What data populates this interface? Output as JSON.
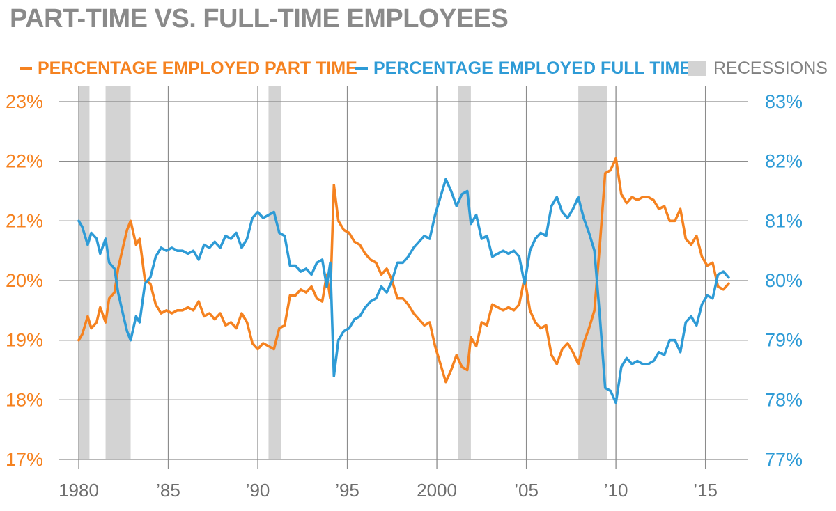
{
  "chart_data": {
    "type": "line",
    "title": "PART-TIME VS. FULL-TIME EMPLOYEES",
    "legend": {
      "part_time": "PERCENTAGE EMPLOYED PART TIME",
      "full_time": "PERCENTAGE EMPLOYED FULL TIME",
      "recessions": "RECESSIONS"
    },
    "colors": {
      "part_time": "#f58220",
      "full_time": "#2e9bd6",
      "recessions": "#d3d3d3",
      "grid": "#8c8c8c",
      "title": "#8a8a8a"
    },
    "x_range": [
      1980,
      2016.5
    ],
    "x_ticks": [
      {
        "value": 1980,
        "label": "1980"
      },
      {
        "value": 1985,
        "label": "’85"
      },
      {
        "value": 1990,
        "label": "’90"
      },
      {
        "value": 1995,
        "label": "’95"
      },
      {
        "value": 2000,
        "label": "2000"
      },
      {
        "value": 2005,
        "label": "’05"
      },
      {
        "value": 2010,
        "label": "’10"
      },
      {
        "value": 2015,
        "label": "’15"
      }
    ],
    "y_left": {
      "range": [
        17,
        23
      ],
      "ticks": [
        17,
        18,
        19,
        20,
        21,
        22,
        23
      ],
      "labels": [
        "17%",
        "18%",
        "19%",
        "20%",
        "21%",
        "22%",
        "23%"
      ]
    },
    "y_right": {
      "range": [
        77,
        83
      ],
      "ticks": [
        77,
        78,
        79,
        80,
        81,
        82,
        83
      ],
      "labels": [
        "77%",
        "78%",
        "79%",
        "80%",
        "81%",
        "82%",
        "83%"
      ]
    },
    "recessions": [
      [
        1980.0,
        1980.6
      ],
      [
        1981.5,
        1982.9
      ],
      [
        1990.6,
        1991.3
      ],
      [
        2001.2,
        2001.9
      ],
      [
        2007.9,
        2009.5
      ]
    ],
    "series": [
      {
        "name": "PERCENTAGE EMPLOYED PART TIME",
        "axis": "left",
        "x": [
          1980.0,
          1980.2,
          1980.5,
          1980.7,
          1981.0,
          1981.2,
          1981.5,
          1981.7,
          1982.0,
          1982.2,
          1982.5,
          1982.7,
          1982.9,
          1983.2,
          1983.4,
          1983.7,
          1984.0,
          1984.3,
          1984.6,
          1984.9,
          1985.2,
          1985.5,
          1985.8,
          1986.1,
          1986.4,
          1986.7,
          1987.0,
          1987.3,
          1987.6,
          1987.9,
          1988.2,
          1988.5,
          1988.8,
          1989.1,
          1989.4,
          1989.7,
          1990.0,
          1990.3,
          1990.6,
          1990.9,
          1991.2,
          1991.5,
          1991.8,
          1992.1,
          1992.4,
          1992.7,
          1993.0,
          1993.3,
          1993.6,
          1993.85,
          1994.05,
          1994.25,
          1994.5,
          1994.8,
          1995.1,
          1995.4,
          1995.7,
          1996.0,
          1996.3,
          1996.6,
          1996.9,
          1997.2,
          1997.5,
          1997.8,
          1998.1,
          1998.4,
          1998.7,
          1999.0,
          1999.3,
          1999.6,
          1999.9,
          2000.2,
          2000.5,
          2000.8,
          2001.1,
          2001.4,
          2001.7,
          2001.9,
          2002.2,
          2002.5,
          2002.8,
          2003.1,
          2003.4,
          2003.7,
          2004.0,
          2004.3,
          2004.6,
          2004.9,
          2005.2,
          2005.5,
          2005.8,
          2006.1,
          2006.4,
          2006.7,
          2007.0,
          2007.3,
          2007.6,
          2007.9,
          2008.2,
          2008.5,
          2008.8,
          2009.1,
          2009.4,
          2009.7,
          2010.0,
          2010.3,
          2010.6,
          2010.9,
          2011.2,
          2011.5,
          2011.8,
          2012.1,
          2012.4,
          2012.7,
          2013.0,
          2013.3,
          2013.6,
          2013.9,
          2014.2,
          2014.5,
          2014.8,
          2015.1,
          2015.4,
          2015.7,
          2016.0,
          2016.3
        ],
        "values": [
          19.0,
          19.1,
          19.4,
          19.2,
          19.3,
          19.55,
          19.3,
          19.7,
          19.8,
          20.2,
          20.6,
          20.85,
          21.0,
          20.6,
          20.7,
          20.0,
          19.95,
          19.6,
          19.45,
          19.5,
          19.45,
          19.5,
          19.5,
          19.55,
          19.5,
          19.65,
          19.4,
          19.45,
          19.35,
          19.45,
          19.25,
          19.3,
          19.2,
          19.45,
          19.3,
          18.95,
          18.85,
          18.95,
          18.9,
          18.85,
          19.2,
          19.25,
          19.75,
          19.75,
          19.85,
          19.8,
          19.9,
          19.7,
          19.65,
          20.1,
          19.7,
          21.6,
          21.0,
          20.85,
          20.8,
          20.65,
          20.6,
          20.45,
          20.35,
          20.3,
          20.1,
          20.2,
          20.0,
          19.7,
          19.7,
          19.6,
          19.45,
          19.35,
          19.25,
          19.3,
          18.9,
          18.6,
          18.3,
          18.5,
          18.75,
          18.55,
          18.5,
          19.05,
          18.9,
          19.3,
          19.25,
          19.6,
          19.55,
          19.5,
          19.55,
          19.5,
          19.6,
          20.05,
          19.5,
          19.3,
          19.2,
          19.25,
          18.75,
          18.6,
          18.85,
          18.95,
          18.8,
          18.6,
          18.95,
          19.2,
          19.5,
          20.6,
          21.8,
          21.85,
          22.05,
          21.45,
          21.3,
          21.4,
          21.35,
          21.4,
          21.4,
          21.35,
          21.2,
          21.25,
          21.0,
          21.0,
          21.2,
          20.7,
          20.6,
          20.75,
          20.4,
          20.25,
          20.3,
          19.9,
          19.85,
          19.95
        ]
      },
      {
        "name": "PERCENTAGE EMPLOYED FULL TIME",
        "axis": "right",
        "x": [
          1980.0,
          1980.2,
          1980.5,
          1980.7,
          1981.0,
          1981.2,
          1981.5,
          1981.7,
          1982.0,
          1982.2,
          1982.5,
          1982.7,
          1982.9,
          1983.2,
          1983.4,
          1983.7,
          1984.0,
          1984.3,
          1984.6,
          1984.9,
          1985.2,
          1985.5,
          1985.8,
          1986.1,
          1986.4,
          1986.7,
          1987.0,
          1987.3,
          1987.6,
          1987.9,
          1988.2,
          1988.5,
          1988.8,
          1989.1,
          1989.4,
          1989.7,
          1990.0,
          1990.3,
          1990.6,
          1990.9,
          1991.2,
          1991.5,
          1991.8,
          1992.1,
          1992.4,
          1992.7,
          1993.0,
          1993.3,
          1993.6,
          1993.85,
          1994.05,
          1994.25,
          1994.5,
          1994.8,
          1995.1,
          1995.4,
          1995.7,
          1996.0,
          1996.3,
          1996.6,
          1996.9,
          1997.2,
          1997.5,
          1997.8,
          1998.1,
          1998.4,
          1998.7,
          1999.0,
          1999.3,
          1999.6,
          1999.9,
          2000.2,
          2000.5,
          2000.8,
          2001.1,
          2001.4,
          2001.7,
          2001.9,
          2002.2,
          2002.5,
          2002.8,
          2003.1,
          2003.4,
          2003.7,
          2004.0,
          2004.3,
          2004.6,
          2004.9,
          2005.2,
          2005.5,
          2005.8,
          2006.1,
          2006.4,
          2006.7,
          2007.0,
          2007.3,
          2007.6,
          2007.9,
          2008.2,
          2008.5,
          2008.8,
          2009.1,
          2009.4,
          2009.7,
          2010.0,
          2010.3,
          2010.6,
          2010.9,
          2011.2,
          2011.5,
          2011.8,
          2012.1,
          2012.4,
          2012.7,
          2013.0,
          2013.3,
          2013.6,
          2013.9,
          2014.2,
          2014.5,
          2014.8,
          2015.1,
          2015.4,
          2015.7,
          2016.0,
          2016.3
        ],
        "values": [
          81.0,
          80.9,
          80.6,
          80.8,
          80.7,
          80.45,
          80.7,
          80.3,
          80.2,
          79.8,
          79.4,
          79.15,
          79.0,
          79.4,
          79.3,
          79.95,
          80.05,
          80.4,
          80.55,
          80.5,
          80.55,
          80.5,
          80.5,
          80.45,
          80.5,
          80.35,
          80.6,
          80.55,
          80.65,
          80.55,
          80.75,
          80.7,
          80.8,
          80.55,
          80.7,
          81.05,
          81.15,
          81.05,
          81.1,
          81.15,
          80.8,
          80.75,
          80.25,
          80.25,
          80.15,
          80.2,
          80.1,
          80.3,
          80.35,
          79.9,
          80.3,
          78.4,
          79.0,
          79.15,
          79.2,
          79.35,
          79.4,
          79.55,
          79.65,
          79.7,
          79.9,
          79.8,
          80.0,
          80.3,
          80.3,
          80.4,
          80.55,
          80.65,
          80.75,
          80.7,
          81.1,
          81.4,
          81.7,
          81.5,
          81.25,
          81.45,
          81.5,
          80.95,
          81.1,
          80.7,
          80.75,
          80.4,
          80.45,
          80.5,
          80.45,
          80.5,
          80.4,
          79.95,
          80.5,
          80.7,
          80.8,
          80.75,
          81.25,
          81.4,
          81.15,
          81.05,
          81.2,
          81.4,
          81.05,
          80.8,
          80.5,
          79.4,
          78.2,
          78.15,
          77.95,
          78.55,
          78.7,
          78.6,
          78.65,
          78.6,
          78.6,
          78.65,
          78.8,
          78.75,
          79.0,
          79.0,
          78.8,
          79.3,
          79.4,
          79.25,
          79.6,
          79.75,
          79.7,
          80.1,
          80.15,
          80.05
        ]
      }
    ]
  }
}
